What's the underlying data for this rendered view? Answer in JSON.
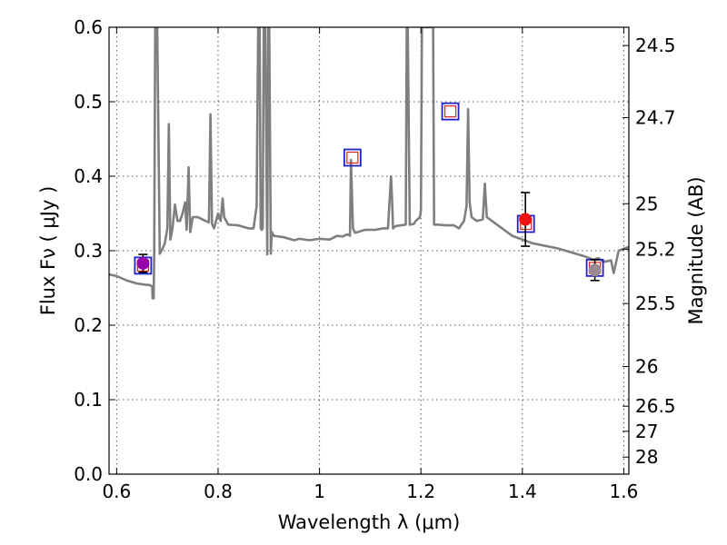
{
  "chart_data": {
    "type": "scatter",
    "xlabel": "Wavelength  λ (μm)",
    "ylabel": "Flux  Fν  ( μJy )",
    "y2label": "Magnitude (AB)",
    "xlim": [
      0.585,
      1.61
    ],
    "ylim": [
      0.0,
      0.6
    ],
    "grid": true,
    "x_ticks": [
      {
        "value": 0.6,
        "label": "0.6"
      },
      {
        "value": 0.8,
        "label": "0.8"
      },
      {
        "value": 1.0,
        "label": "1"
      },
      {
        "value": 1.2,
        "label": "1.2"
      },
      {
        "value": 1.4,
        "label": "1.4"
      },
      {
        "value": 1.6,
        "label": "1.6"
      }
    ],
    "y_ticks": [
      {
        "value": 0.0,
        "label": "0.0"
      },
      {
        "value": 0.1,
        "label": "0.1"
      },
      {
        "value": 0.2,
        "label": "0.2"
      },
      {
        "value": 0.3,
        "label": "0.3"
      },
      {
        "value": 0.4,
        "label": "0.4"
      },
      {
        "value": 0.5,
        "label": "0.5"
      },
      {
        "value": 0.6,
        "label": "0.6"
      }
    ],
    "y2_ticks": [
      {
        "value": 24.5,
        "label": "24.5"
      },
      {
        "value": 24.7,
        "label": "24.7"
      },
      {
        "value": 25.0,
        "label": "25"
      },
      {
        "value": 25.2,
        "label": "25.2"
      },
      {
        "value": 25.5,
        "label": "25.5"
      },
      {
        "value": 26.0,
        "label": "26"
      },
      {
        "value": 26.5,
        "label": "26.5"
      },
      {
        "value": 27.0,
        "label": "27"
      },
      {
        "value": 28.0,
        "label": "28"
      }
    ],
    "model_spectrum": {
      "color": "#7f7f7f",
      "x": [
        0.585,
        0.6,
        0.62,
        0.64,
        0.66,
        0.665,
        0.67,
        0.671,
        0.673,
        0.674,
        0.676,
        0.68,
        0.685,
        0.69,
        0.695,
        0.7,
        0.703,
        0.706,
        0.71,
        0.715,
        0.72,
        0.725,
        0.73,
        0.735,
        0.738,
        0.742,
        0.745,
        0.75,
        0.76,
        0.775,
        0.782,
        0.785,
        0.788,
        0.792,
        0.8,
        0.805,
        0.809,
        0.812,
        0.82,
        0.84,
        0.86,
        0.87,
        0.876,
        0.879,
        0.882,
        0.884,
        0.886,
        0.888,
        0.89,
        0.893,
        0.897,
        0.899,
        0.901,
        0.904,
        0.906,
        0.91,
        0.93,
        0.95,
        0.96,
        0.98,
        1.0,
        1.02,
        1.035,
        1.045,
        1.055,
        1.06,
        1.062,
        1.066,
        1.07,
        1.075,
        1.09,
        1.11,
        1.125,
        1.135,
        1.141,
        1.143,
        1.145,
        1.15,
        1.17,
        1.172,
        1.174,
        1.178,
        1.186,
        1.19,
        1.198,
        1.2,
        1.202,
        1.21,
        1.222,
        1.224,
        1.226,
        1.232,
        1.25,
        1.265,
        1.275,
        1.285,
        1.29,
        1.293,
        1.296,
        1.3,
        1.31,
        1.322,
        1.326,
        1.33,
        1.35,
        1.38,
        1.42,
        1.47,
        1.52,
        1.54,
        1.55,
        1.56,
        1.575,
        1.58,
        1.59,
        1.61
      ],
      "y": [
        0.268,
        0.266,
        0.26,
        0.256,
        0.254,
        0.254,
        0.252,
        0.236,
        0.236,
        0.3,
        0.6,
        0.6,
        0.296,
        0.302,
        0.31,
        0.33,
        0.47,
        0.315,
        0.33,
        0.362,
        0.34,
        0.34,
        0.35,
        0.365,
        0.328,
        0.412,
        0.325,
        0.345,
        0.345,
        0.34,
        0.338,
        0.483,
        0.336,
        0.33,
        0.35,
        0.34,
        0.37,
        0.345,
        0.335,
        0.334,
        0.33,
        0.33,
        0.36,
        0.6,
        0.6,
        0.33,
        0.328,
        0.33,
        0.6,
        0.6,
        0.295,
        0.6,
        0.6,
        0.296,
        0.325,
        0.32,
        0.318,
        0.314,
        0.316,
        0.314,
        0.316,
        0.315,
        0.32,
        0.319,
        0.322,
        0.32,
        0.422,
        0.33,
        0.324,
        0.325,
        0.328,
        0.328,
        0.33,
        0.33,
        0.4,
        0.37,
        0.33,
        0.333,
        0.335,
        0.6,
        0.6,
        0.335,
        0.336,
        0.34,
        0.345,
        0.355,
        0.6,
        0.6,
        0.6,
        0.6,
        0.335,
        0.335,
        0.334,
        0.334,
        0.33,
        0.34,
        0.36,
        0.49,
        0.365,
        0.345,
        0.34,
        0.342,
        0.39,
        0.345,
        0.335,
        0.32,
        0.31,
        0.303,
        0.293,
        0.288,
        0.29,
        0.285,
        0.287,
        0.27,
        0.3,
        0.305
      ]
    },
    "model_photometry": [
      {
        "x": 0.652,
        "y": 0.28
      },
      {
        "x": 1.065,
        "y": 0.425
      },
      {
        "x": 1.258,
        "y": 0.487
      },
      {
        "x": 1.407,
        "y": 0.336
      },
      {
        "x": 1.543,
        "y": 0.277
      }
    ],
    "observed_photometry": [
      {
        "x": 0.652,
        "y": 0.283,
        "yerr": 0.012,
        "color": "#9900aa"
      },
      {
        "x": 1.406,
        "y": 0.342,
        "yerr": 0.036,
        "color": "#ee1111"
      },
      {
        "x": 1.543,
        "y": 0.274,
        "yerr": 0.014,
        "color": "#9a8a94"
      }
    ]
  }
}
